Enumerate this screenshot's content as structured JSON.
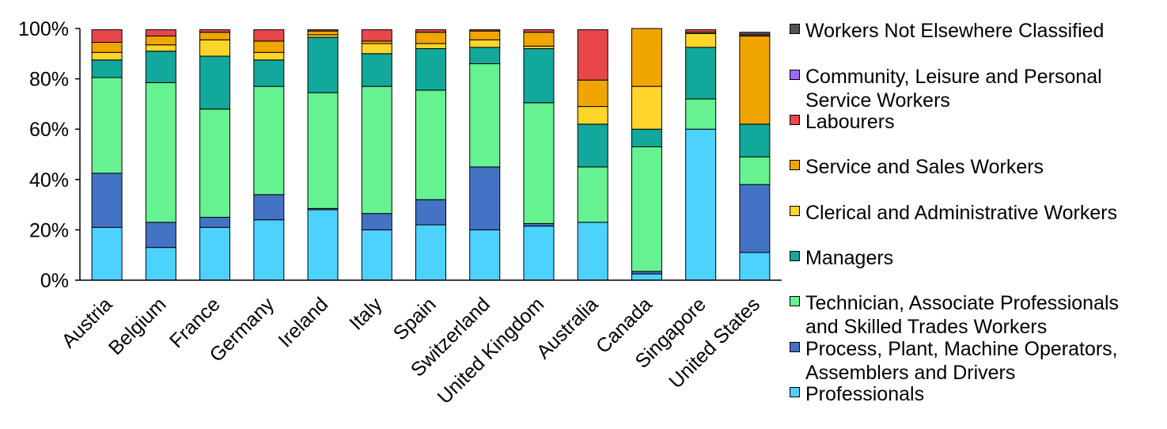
{
  "chart_data": {
    "type": "bar",
    "stacked": true,
    "percent": true,
    "ylim": [
      0,
      100
    ],
    "yticks": [
      "0%",
      "20%",
      "40%",
      "60%",
      "80%",
      "100%"
    ],
    "grid": false,
    "legend_position": "right",
    "categories": [
      "Austria",
      "Belgium",
      "France",
      "Germany",
      "Ireland",
      "Italy",
      "Spain",
      "Switzerland",
      "United Kingdom",
      "Australia",
      "Canada",
      "Singapore",
      "United States"
    ],
    "series": [
      {
        "name": "Professionals",
        "color": "#4DD2FF",
        "values": [
          21,
          13,
          21,
          24,
          28,
          20,
          22,
          20,
          21.5,
          23,
          2.5,
          60,
          11
        ]
      },
      {
        "name": "Process, Plant, Machine Operators, Assemblers and Drivers",
        "color": "#4472C4",
        "values": [
          21.5,
          10,
          4,
          10,
          0.5,
          6.5,
          10,
          25,
          1,
          0,
          1,
          0,
          27
        ]
      },
      {
        "name": "Technician, Associate Professionals and Skilled Trades Workers",
        "color": "#66F291",
        "values": [
          38,
          55.5,
          43,
          43,
          46,
          50.5,
          43.5,
          41,
          48,
          22,
          49.5,
          12,
          11
        ]
      },
      {
        "name": "Managers",
        "color": "#12A89C",
        "values": [
          7,
          12.5,
          21,
          10.5,
          22,
          13,
          16.5,
          6.5,
          21.5,
          17,
          7,
          20.5,
          13
        ]
      },
      {
        "name": "Clerical and Administrative Workers",
        "color": "#FFD52B",
        "values": [
          3,
          2.5,
          6.5,
          3,
          1,
          4,
          2,
          3,
          1,
          7,
          17,
          5.5,
          0
        ]
      },
      {
        "name": "Service and Sales Workers",
        "color": "#F0A500",
        "values": [
          4,
          3.5,
          3,
          4.5,
          1.5,
          1,
          4.5,
          3.5,
          5.5,
          10.5,
          23,
          0.5,
          35
        ]
      },
      {
        "name": "Labourers",
        "color": "#E8474A",
        "values": [
          5,
          2.5,
          1,
          4.5,
          0.5,
          4.5,
          1,
          0.5,
          1,
          20,
          0,
          1,
          0.5
        ]
      },
      {
        "name": "Community, Leisure and Personal Service Workers",
        "color": "#A469F0",
        "values": [
          0,
          0,
          0,
          0,
          0,
          0,
          0,
          0,
          0,
          0,
          0,
          0,
          0
        ]
      },
      {
        "name": "Workers Not Elsewhere Classified",
        "color": "#555555",
        "values": [
          0,
          0,
          0,
          0,
          0,
          0,
          0,
          0,
          0,
          0,
          0,
          0,
          1
        ]
      }
    ]
  },
  "legend": {
    "items": [
      {
        "label": "Workers Not Elsewhere Classified",
        "color": "#555555"
      },
      {
        "label": "Community, Leisure and Personal Service Workers",
        "color": "#A469F0"
      },
      {
        "label": "Labourers",
        "color": "#E8474A"
      },
      {
        "label": "Service and Sales Workers",
        "color": "#F0A500"
      },
      {
        "label": "Clerical and Administrative Workers",
        "color": "#FFD52B"
      },
      {
        "label": "Managers",
        "color": "#12A89C"
      },
      {
        "label": "Technician, Associate Professionals and Skilled Trades Workers",
        "color": "#66F291"
      },
      {
        "label": "Process, Plant, Machine Operators, Assemblers and Drivers",
        "color": "#4472C4"
      },
      {
        "label": "Professionals",
        "color": "#4DD2FF"
      }
    ]
  }
}
